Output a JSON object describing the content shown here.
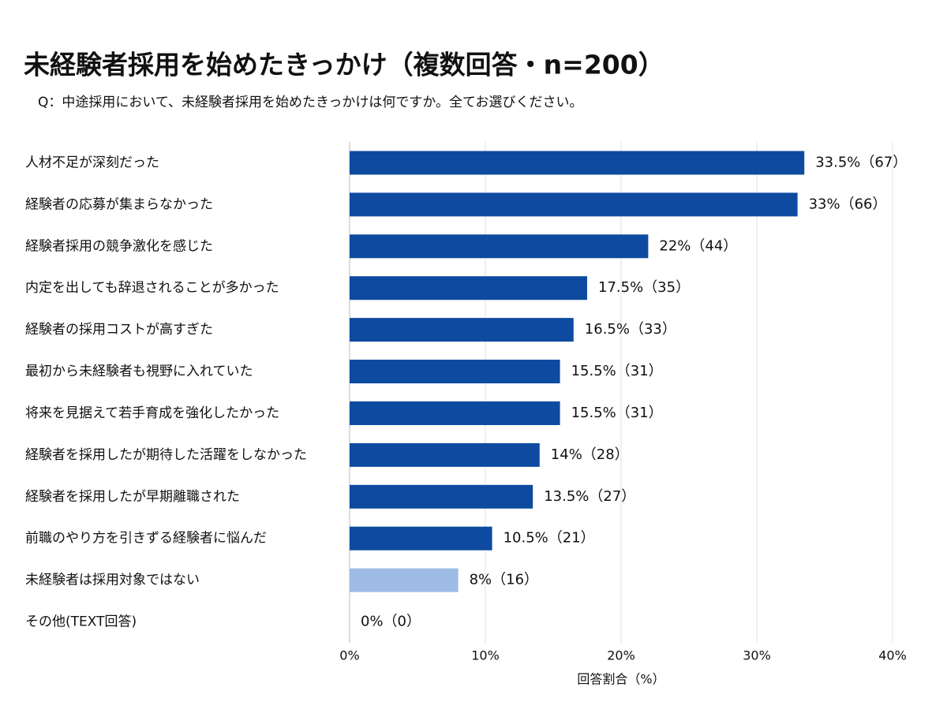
{
  "chart_data": {
    "type": "barh",
    "title": "未経験者採用を始めたきっかけ（複数回答・n=200）",
    "subtitle": "Q：中途採用において、未経験者採用を始めたきっかけは何ですか。全てお選びください。",
    "x_label": "回答割合（%）",
    "categories": [
      "人材不足が深刻だった",
      "経験者の応募が集まらなかった",
      "経験者採用の競争激化を感じた",
      "内定を出しても辞退されることが多かった",
      "経験者の採用コストが高すぎた",
      "最初から未経験者も視野に入れていた",
      "将来を見据えて若手育成を強化したかった",
      "経験者を採用したが期待した活躍をしなかった",
      "経験者を採用したが早期離職された",
      "前職のやり方を引きずる経験者に悩んだ",
      "未経験者は採用対象ではない",
      "その他(TEXT回答)"
    ],
    "values": [
      33.5,
      33,
      22,
      17.5,
      16.5,
      15.5,
      15.5,
      14,
      13.5,
      10.5,
      8,
      0
    ],
    "value_labels": [
      "33.5%（67）",
      "33%（66）",
      "22%（44）",
      "17.5%（35）",
      "16.5%（33）",
      "15.5%（31）",
      "15.5%（31）",
      "14%（28）",
      "13.5%（27）",
      "10.5%（21）",
      "8%（16）",
      "0%（0）"
    ],
    "colors": [
      "#0e4aa0",
      "#0e4aa0",
      "#0e4aa0",
      "#0e4aa0",
      "#0e4aa0",
      "#0e4aa0",
      "#0e4aa0",
      "#0e4aa0",
      "#0e4aa0",
      "#0e4aa0",
      "#9dbbe5",
      "#0e4aa0"
    ],
    "xlim": [
      0,
      40
    ],
    "xticks": [
      {
        "value": 0,
        "label": "0%"
      },
      {
        "value": 10,
        "label": "10%"
      },
      {
        "value": 20,
        "label": "20%"
      },
      {
        "value": 30,
        "label": "30%"
      },
      {
        "value": 40,
        "label": "40%"
      }
    ],
    "grid": true
  }
}
